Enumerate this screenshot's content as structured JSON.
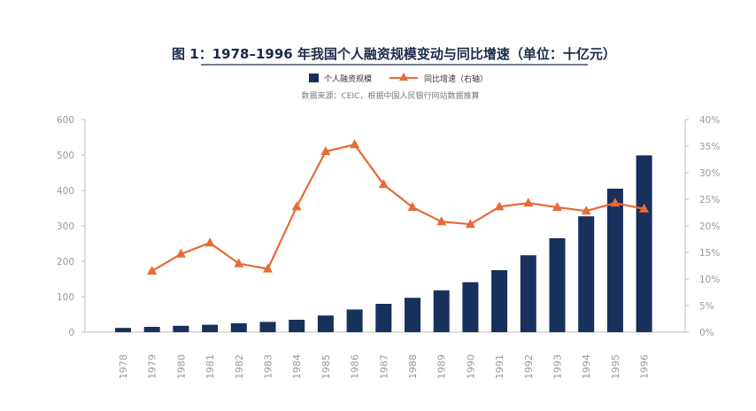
{
  "chart_data": {
    "type": "bar+line",
    "title": "图 1：1978–1996 年我国个人融资规模变动与同比增速（单位：十亿元）",
    "source": "数据来源：CEIC，根据中国人民银行网站数据推算",
    "categories": [
      "1978",
      "1979",
      "1980",
      "1981",
      "1982",
      "1983",
      "1984",
      "1985",
      "1986",
      "1987",
      "1988",
      "1989",
      "1990",
      "1991",
      "1992",
      "1993",
      "1994",
      "1995",
      "1996"
    ],
    "series": [
      {
        "name": "个人融资规模",
        "type": "bar",
        "axis": "left",
        "color": "#17305c",
        "values": [
          12,
          15,
          18,
          21,
          25,
          29,
          35,
          47,
          64,
          80,
          97,
          118,
          141,
          175,
          217,
          265,
          327,
          405,
          499
        ]
      },
      {
        "name": "同比增速（右轴）",
        "type": "line",
        "axis": "right",
        "color": "#e86a35",
        "marker": "triangle",
        "values": [
          null,
          11.5,
          14.7,
          16.8,
          12.9,
          11.9,
          23.6,
          34.0,
          35.3,
          27.8,
          23.5,
          20.8,
          20.3,
          23.6,
          24.3,
          23.5,
          22.8,
          24.3,
          23.2
        ]
      }
    ],
    "y_left": {
      "min": 0,
      "max": 600,
      "step": 100,
      "ticks": [
        "0",
        "100",
        "200",
        "300",
        "400",
        "500",
        "600"
      ]
    },
    "y_right": {
      "min": 0,
      "max": 40,
      "step": 5,
      "ticks": [
        "0%",
        "5%",
        "10%",
        "15%",
        "20%",
        "25%",
        "30%",
        "35%",
        "40%"
      ]
    },
    "grid": false,
    "legend_position": "top-center"
  }
}
